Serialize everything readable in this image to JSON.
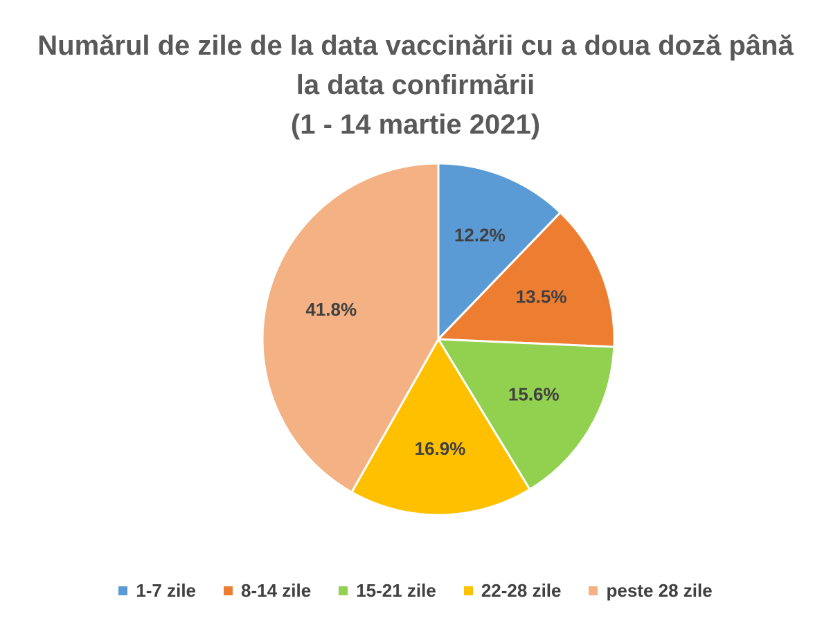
{
  "chart_data": {
    "type": "pie",
    "title_lines": [
      "Numărul de zile de la data vaccinării cu a doua doză până",
      "la data confirmării",
      "(1 - 14 martie 2021)"
    ],
    "categories": [
      "1-7 zile",
      "8-14 zile",
      "15-21 zile",
      "22-28 zile",
      "peste 28 zile"
    ],
    "values": [
      12.2,
      13.5,
      15.6,
      16.9,
      41.8
    ],
    "data_labels": [
      "12.2%",
      "13.5%",
      "15.6%",
      "16.9%",
      "41.8%"
    ],
    "colors": [
      "#5B9BD5",
      "#ED7D31",
      "#92D050",
      "#FFC000",
      "#F4B183"
    ],
    "legend_position": "bottom"
  }
}
